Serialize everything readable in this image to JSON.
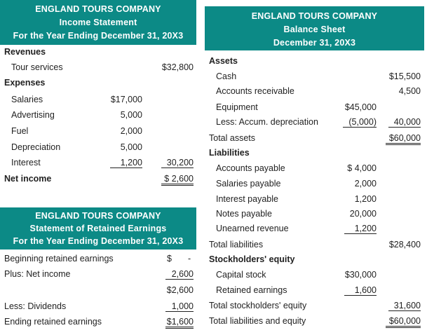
{
  "income": {
    "company": "ENGLAND TOURS COMPANY",
    "title": "Income Statement",
    "period": "For the Year Ending December 31, 20X3",
    "revenues_label": "Revenues",
    "tour_label": "Tour services",
    "tour_value": "$32,800",
    "expenses_label": "Expenses",
    "salaries_label": "Salaries",
    "salaries_value": "$17,000",
    "advertising_label": "Advertising",
    "advertising_value": "5,000",
    "fuel_label": "Fuel",
    "fuel_value": "2,000",
    "depreciation_label": "Depreciation",
    "depreciation_value": "5,000",
    "interest_label": "Interest",
    "interest_value": "1,200",
    "total_expenses": "30,200",
    "net_income_label": "Net income",
    "net_income_value": "$ 2,600"
  },
  "retained": {
    "company": "ENGLAND TOURS COMPANY",
    "title": "Statement of Retained Earnings",
    "period": "For the Year Ending December 31, 20X3",
    "beginning_label": "Beginning retained earnings",
    "beginning_dollar": "$",
    "beginning_value": "-",
    "plus_label": "Plus: Net income",
    "plus_value": "2,600",
    "subtotal": "$2,600",
    "dividends_label": "Less: Dividends",
    "dividends_value": "1,000",
    "ending_label": "Ending retained earnings",
    "ending_value": "$1,600"
  },
  "balance": {
    "company": "ENGLAND TOURS COMPANY",
    "title": "Balance Sheet",
    "date": "December 31, 20X3",
    "assets_label": "Assets",
    "cash_label": "Cash",
    "cash_value": "$15,500",
    "ar_label": "Accounts receivable",
    "ar_value": "4,500",
    "equipment_label": "Equipment",
    "equipment_value": "$45,000",
    "accum_label": "Less: Accum. depreciation",
    "accum_value": "(5,000)",
    "equipment_net": "40,000",
    "total_assets_label": "Total assets",
    "total_assets_value": "$60,000",
    "liabilities_label": "Liabilities",
    "ap_label": "Accounts payable",
    "ap_value": "$ 4,000",
    "sp_label": "Salaries payable",
    "sp_value": "2,000",
    "ip_label": "Interest payable",
    "ip_value": "1,200",
    "np_label": "Notes payable",
    "np_value": "20,000",
    "ur_label": "Unearned revenue",
    "ur_value": "1,200",
    "total_liab_label": "Total liabilities",
    "total_liab_value": "$28,400",
    "se_label": "Stockholders' equity",
    "cs_label": "Capital stock",
    "cs_value": "$30,000",
    "re_label": "Retained earnings",
    "re_value": "1,600",
    "total_se_label": "Total stockholders' equity",
    "total_se_value": "31,600",
    "total_le_label": "Total liabilities and equity",
    "total_le_value": "$60,000"
  }
}
